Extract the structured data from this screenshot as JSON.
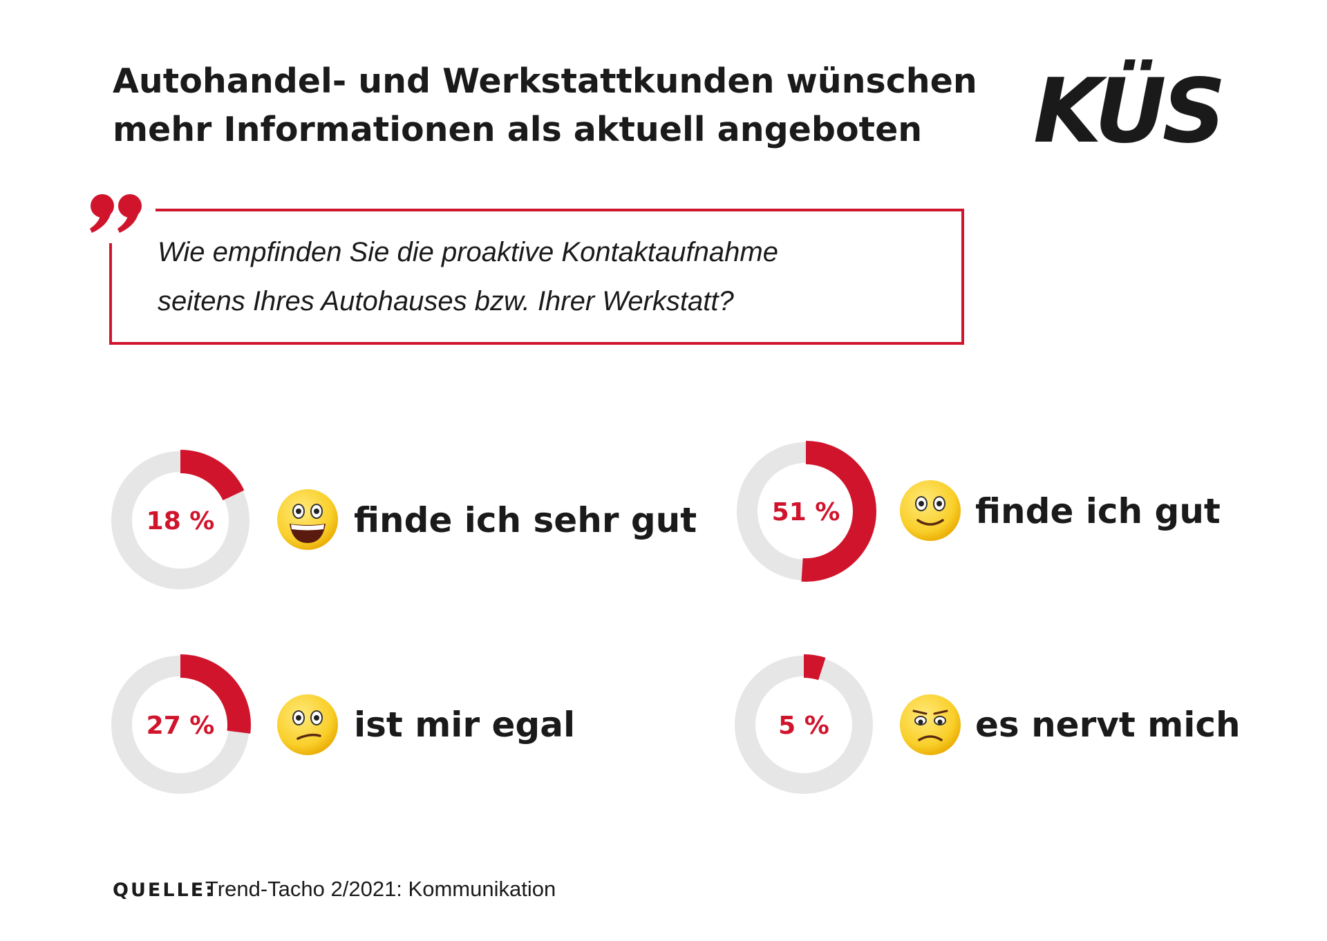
{
  "title": [
    "Autohandel- und Werkstattkunden wünschen",
    "mehr Informationen als aktuell angeboten"
  ],
  "logo": "KÜS",
  "question": [
    "Wie empfinden Sie die proaktive Kontaktaufnahme",
    "seitens Ihres Autohauses bzw. Ihrer Werkstatt?"
  ],
  "source": {
    "label": "QUELLE:",
    "text": "Trend-Tacho 2/2021: Kommunikation"
  },
  "chart_data": [
    {
      "type": "donut",
      "categories": [
        "finde ich sehr gut"
      ],
      "values": [
        18
      ],
      "value_labels": [
        "18 %"
      ],
      "color": "#d0142c",
      "track_color": "#e6e6e6"
    },
    {
      "type": "donut",
      "categories": [
        "finde ich gut"
      ],
      "values": [
        51
      ],
      "value_labels": [
        "51 %"
      ],
      "color": "#d0142c",
      "track_color": "#e6e6e6"
    },
    {
      "type": "donut",
      "categories": [
        "ist mir egal"
      ],
      "values": [
        27
      ],
      "value_labels": [
        "27 %"
      ],
      "color": "#d0142c",
      "track_color": "#e6e6e6"
    },
    {
      "type": "donut",
      "categories": [
        "es nervt mich"
      ],
      "values": [
        5
      ],
      "value_labels": [
        "5 %"
      ],
      "color": "#d0142c",
      "track_color": "#e6e6e6"
    }
  ]
}
